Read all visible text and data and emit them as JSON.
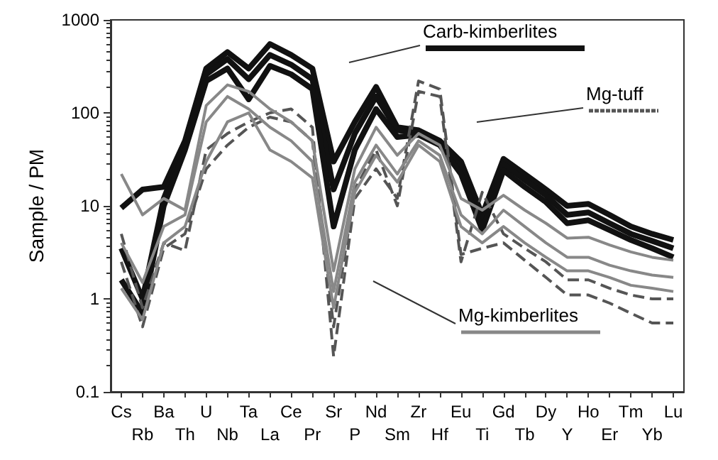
{
  "chart_data": {
    "type": "line",
    "ylabel": "Sample / PM",
    "categories": [
      "Cs",
      "Rb",
      "Ba",
      "Th",
      "U",
      "Nb",
      "Ta",
      "La",
      "Ce",
      "Pr",
      "Sr",
      "P",
      "Nd",
      "Sm",
      "Zr",
      "Hf",
      "Eu",
      "Ti",
      "Gd",
      "Tb",
      "Dy",
      "Y",
      "Ho",
      "Er",
      "Tm",
      "Yb",
      "Lu"
    ],
    "series": [
      {
        "color": "#111111",
        "values": [
          9.5,
          15,
          16,
          50,
          300,
          450,
          300,
          550,
          420,
          300,
          30,
          80,
          190,
          70,
          65,
          50,
          30,
          8,
          32,
          22,
          15,
          10,
          10.5,
          8,
          6,
          5,
          4.3
        ]
      },
      {
        "color": "#111111",
        "values": [
          3.5,
          1,
          12,
          45,
          260,
          380,
          230,
          420,
          330,
          230,
          15,
          60,
          150,
          65,
          62,
          48,
          26,
          6.5,
          28,
          19,
          13,
          8,
          8.5,
          6.5,
          5,
          4.2,
          3.5
        ]
      },
      {
        "color": "#111111",
        "values": [
          1.6,
          0.7,
          10,
          40,
          220,
          300,
          140,
          320,
          260,
          180,
          6,
          40,
          110,
          55,
          58,
          45,
          22,
          5.5,
          24,
          16,
          11,
          6.5,
          7,
          5.5,
          4.3,
          3.5,
          2.8
        ]
      },
      {
        "color": "#555555",
        "line_style": "dashed",
        "values": [
          5,
          0.8,
          4,
          3.3,
          40,
          60,
          80,
          100,
          110,
          70,
          0.24,
          12,
          25,
          12,
          220,
          180,
          3,
          3.5,
          4,
          2.6,
          1.7,
          1.1,
          1.1,
          0.9,
          0.7,
          0.55,
          0.55
        ]
      },
      {
        "color": "#555555",
        "line_style": "dashed",
        "values": [
          2.5,
          0.5,
          3.5,
          5,
          25,
          45,
          70,
          90,
          80,
          50,
          0.5,
          15,
          40,
          10,
          170,
          150,
          2.5,
          14,
          5,
          3.5,
          2.5,
          1.6,
          1.6,
          1.3,
          1.1,
          1,
          1
        ]
      },
      {
        "color": "#888888",
        "values": [
          22,
          8,
          12,
          9,
          120,
          200,
          170,
          110,
          80,
          50,
          2,
          25,
          70,
          35,
          60,
          45,
          12,
          9,
          13,
          9,
          6.5,
          4.5,
          4.6,
          3.8,
          3.2,
          2.8,
          2.6
        ]
      },
      {
        "color": "#888888",
        "values": [
          4,
          1.5,
          6,
          8,
          80,
          150,
          110,
          70,
          50,
          30,
          1.2,
          18,
          45,
          22,
          50,
          35,
          8,
          5,
          9,
          6,
          4,
          2.8,
          2.8,
          2.3,
          2,
          1.8,
          1.7
        ]
      },
      {
        "color": "#888888",
        "values": [
          1.3,
          0.6,
          4,
          6,
          30,
          80,
          100,
          40,
          30,
          20,
          0.8,
          14,
          35,
          18,
          45,
          30,
          6,
          4,
          6,
          4,
          2.8,
          2,
          2,
          1.7,
          1.4,
          1.3,
          1.2
        ]
      }
    ],
    "annotations": [
      "Carb-kimberlites",
      "Mg-tuff",
      "Mg-kimberlites"
    ],
    "log": true,
    "ylim": [
      0.1,
      1000
    ],
    "yticks": [
      0.1,
      1,
      10,
      100,
      1000
    ],
    "grid": false,
    "marker": "none"
  }
}
